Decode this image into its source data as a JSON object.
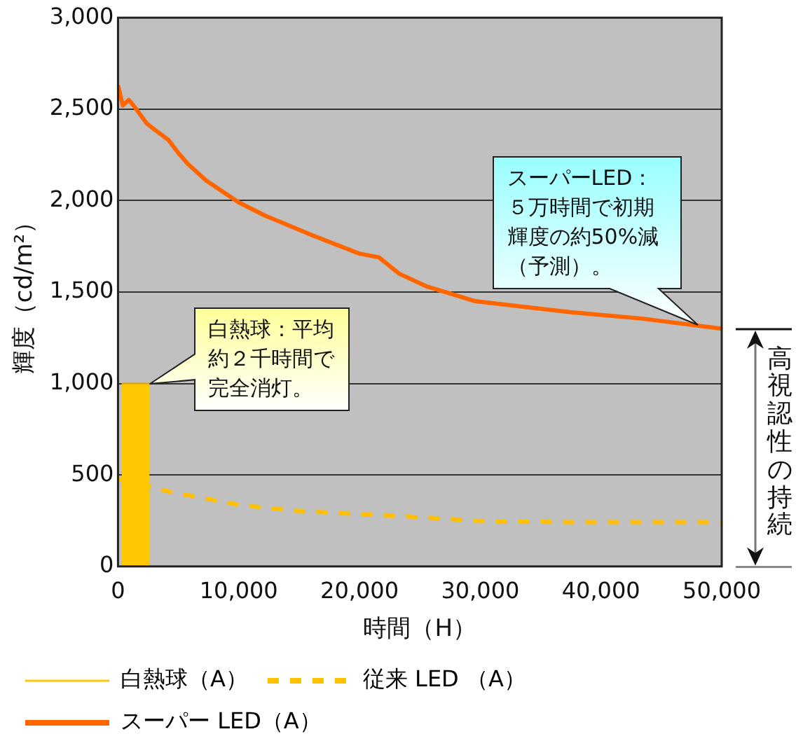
{
  "chart_data": {
    "type": "line",
    "xlabel": "時間（H）",
    "ylabel": "輝度（cd/m²）",
    "xlim": [
      0,
      50000
    ],
    "xticks": [
      0,
      {
        "value": 10000,
        "label": "10,000"
      },
      {
        "value": 20000,
        "label": "20,000"
      },
      {
        "value": 30000,
        "label": "30,000"
      },
      {
        "value": 40000,
        "label": "40,000"
      },
      {
        "value": 50000,
        "label": "50,000"
      }
    ],
    "ylim": [
      0,
      3000
    ],
    "yticks": [
      0,
      500,
      {
        "value": 1000,
        "label": "1,000"
      },
      {
        "value": 1500,
        "label": "1,500"
      },
      {
        "value": 2000,
        "label": "2,000"
      },
      {
        "value": 2500,
        "label": "2,500"
      },
      {
        "value": 3000,
        "label": "3,000"
      }
    ],
    "grid": "y",
    "legend": "bottom",
    "marker": "none",
    "series": [
      {
        "name": "白熱球（A）",
        "type": "area",
        "color": "#ffc800",
        "x": [
          300,
          2600
        ],
        "values": [
          1000,
          1000
        ]
      },
      {
        "name": "従来 LED （A）",
        "type": "line",
        "line_style": "dashed",
        "color": "#ffc000",
        "x": [
          0,
          4200,
          10200,
          14600,
          20000,
          22400,
          29600,
          37500,
          48900,
          50000
        ],
        "values": [
          480,
          410,
          335,
          305,
          285,
          280,
          250,
          242,
          242,
          240
        ]
      },
      {
        "name": "スーパー LED（A）",
        "type": "line",
        "line_style": "solid",
        "color": "#ff6600",
        "x": [
          0,
          400,
          900,
          1400,
          2400,
          3000,
          4200,
          5000,
          5800,
          7300,
          10000,
          12100,
          16100,
          20000,
          21600,
          23300,
          25600,
          29600,
          37500,
          43400,
          50000
        ],
        "values": [
          2630,
          2520,
          2550,
          2510,
          2420,
          2390,
          2330,
          2260,
          2200,
          2110,
          1990,
          1920,
          1810,
          1710,
          1690,
          1600,
          1530,
          1450,
          1390,
          1355,
          1300
        ]
      }
    ],
    "annotations": [
      {
        "text": "白熱球：平均約２千時間で完全消灯。",
        "x": 2600,
        "y": 1000
      },
      {
        "text": "スーパーLED：５万時間で初期輝度の約50%減（予測）。",
        "x": 48000,
        "y": 1320
      },
      "高視認性の持続"
    ]
  }
}
